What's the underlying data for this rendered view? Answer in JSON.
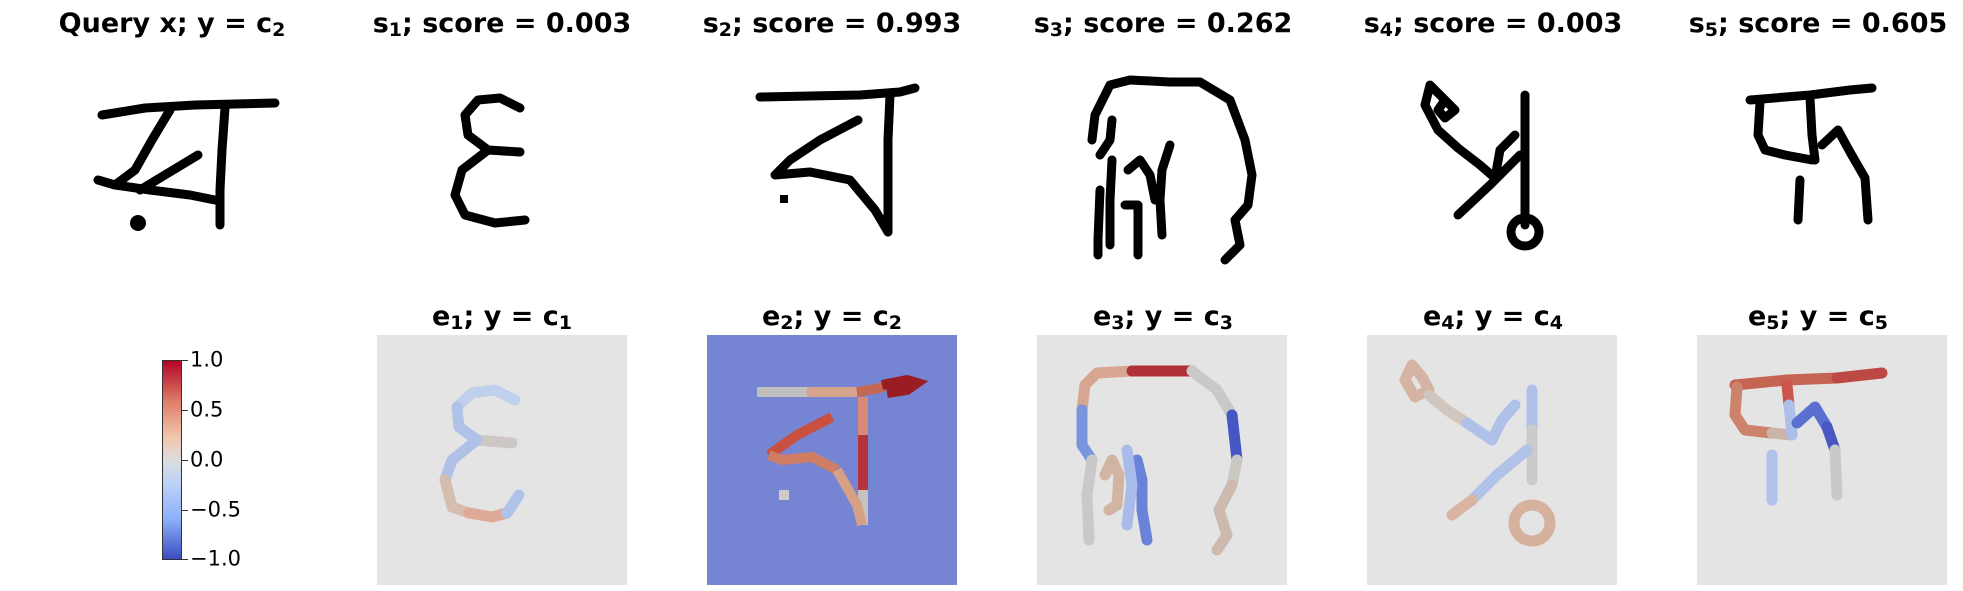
{
  "top_row": [
    {
      "label": "Query x; y = c",
      "sub": "2"
    },
    {
      "label_a": "s",
      "sub": "1",
      "label_b": "; score = 0.003"
    },
    {
      "label_a": "s",
      "sub": "2",
      "label_b": "; score = 0.993"
    },
    {
      "label_a": "s",
      "sub": "3",
      "label_b": "; score = 0.262"
    },
    {
      "label_a": "s",
      "sub": "4",
      "label_b": "; score = 0.003"
    },
    {
      "label_a": "s",
      "sub": "5",
      "label_b": "; score = 0.605"
    }
  ],
  "bottom_row": [
    {
      "label_a": "e",
      "sub1": "1",
      "label_b": "; y = c",
      "sub2": "1"
    },
    {
      "label_a": "e",
      "sub1": "2",
      "label_b": "; y = c",
      "sub2": "2"
    },
    {
      "label_a": "e",
      "sub1": "3",
      "label_b": "; y = c",
      "sub2": "3"
    },
    {
      "label_a": "e",
      "sub1": "4",
      "label_b": "; y = c",
      "sub2": "4"
    },
    {
      "label_a": "e",
      "sub1": "5",
      "label_b": "; y = c",
      "sub2": "5"
    }
  ],
  "colorbar": {
    "ticks": [
      "1.0",
      "0.5",
      "0.0",
      "−0.5",
      "−1.0"
    ],
    "colors": {
      "pos": "#b40426",
      "mid": "#dddddd",
      "neg": "#3b4cc0"
    }
  },
  "backgrounds": {
    "e1": "#e4e4e4",
    "e2": "#7585d4",
    "e3": "#e4e4e4",
    "e4": "#e4e4e4",
    "e5": "#e4e4e4"
  }
}
